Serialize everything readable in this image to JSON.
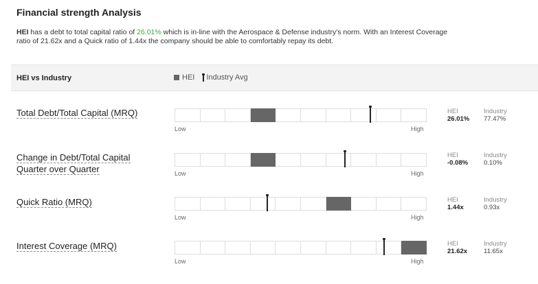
{
  "title": "Financial strength Analysis",
  "summary": {
    "ticker": "HEI",
    "text_1": " has a debt to total capital ratio of ",
    "ratio": "26.01%",
    "text_2": " which is in-line with the Aerospace & Defense industry's norm. With an Interest Coverage ratio of 21.62x and a Quick ratio of 1.44x the company should be able to comfortably repay its debt."
  },
  "header": {
    "label": "HEI vs Industry",
    "legend_hei": "HEI",
    "legend_industry": "Industry Avg"
  },
  "scale": {
    "low": "Low",
    "high": "High"
  },
  "value_labels": {
    "hei": "HEI",
    "industry": "Industry"
  },
  "colors": {
    "hei_fill": "#666666",
    "accent_green": "#3aa845"
  },
  "metrics": [
    {
      "line1": "Total Debt/Total Capital (MRQ)",
      "line2": "",
      "hei_value": "26.01%",
      "industry_value": "77.47%",
      "hei_segment": 4,
      "industry_marker_fraction": 0.775
    },
    {
      "line1": "Change in Debt/Total Capital",
      "line2": "Quarter over Quarter",
      "hei_value": "-0.08%",
      "industry_value": "0.10%",
      "hei_segment": 4,
      "industry_marker_fraction": 0.675
    },
    {
      "line1": "Quick Ratio (MRQ)",
      "line2": "",
      "hei_value": "1.44x",
      "industry_value": "0.93x",
      "hei_segment": 7,
      "industry_marker_fraction": 0.365
    },
    {
      "line1": "Interest Coverage (MRQ)",
      "line2": "",
      "hei_value": "21.62x",
      "industry_value": "11.65x",
      "hei_segment": 10,
      "industry_marker_fraction": 0.83
    }
  ]
}
